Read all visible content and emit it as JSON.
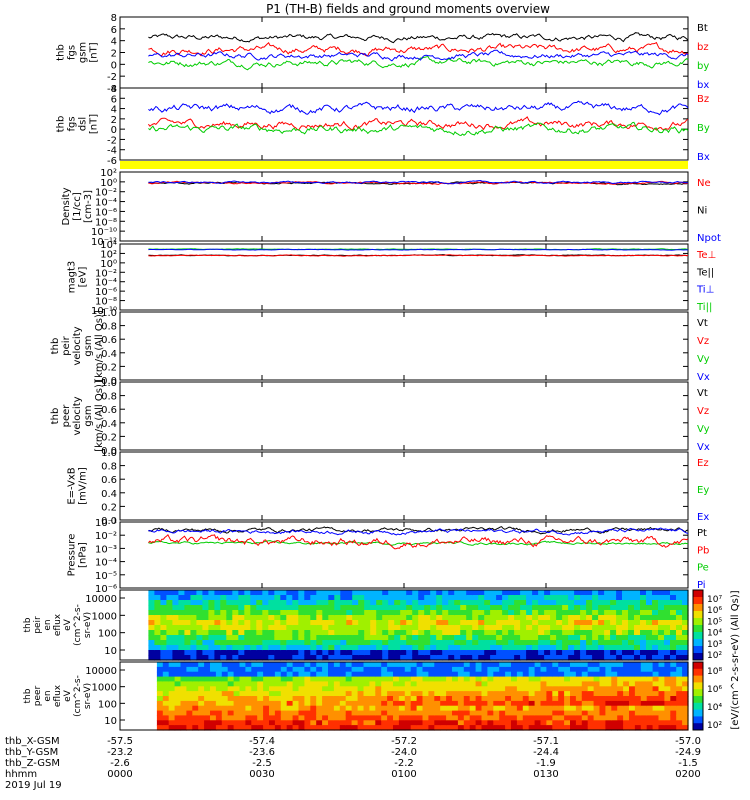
{
  "title": "P1 (TH-B) fields and ground moments overview",
  "colors": {
    "black": "#000000",
    "red": "#ff0000",
    "green": "#00cc00",
    "blue": "#0000ff",
    "yellow": "#ffff00"
  },
  "chart_data": {
    "type": "line",
    "x_range": [
      "00:00",
      "02:00"
    ],
    "date": "2019 Jul 19",
    "time_ticks": [
      "0000",
      "0030",
      "0100",
      "0130",
      "0200"
    ],
    "panels": [
      {
        "id": "fgs_gsm",
        "ylabel": [
          "thb",
          "fgs",
          "gsm",
          "[nT]"
        ],
        "ylim": [
          -4,
          8
        ],
        "yticks": [
          "-4",
          "-2",
          "0",
          "2",
          "4",
          "6",
          "8"
        ],
        "legend": [
          {
            "name": "Bt",
            "color": "#000000"
          },
          {
            "name": "bz",
            "color": "#ff0000"
          },
          {
            "name": "by",
            "color": "#00cc00"
          },
          {
            "name": "bx",
            "color": "#0000ff"
          }
        ],
        "series": [
          {
            "name": "Bt",
            "mean": 4.5,
            "amp": 0.8
          },
          {
            "name": "bz",
            "mean": 2.5,
            "amp": 1.0
          },
          {
            "name": "by",
            "mean": 0.3,
            "amp": 0.9
          },
          {
            "name": "bx",
            "mean": 1.5,
            "amp": 0.8
          }
        ]
      },
      {
        "id": "fgs_dsl",
        "ylabel": [
          "thb",
          "fgs",
          "dsl",
          "[nT]"
        ],
        "ylim": [
          -6,
          8
        ],
        "yticks": [
          "-6",
          "-4",
          "-2",
          "0",
          "2",
          "4",
          "6",
          "8"
        ],
        "legend": [
          {
            "name": "Bz",
            "color": "#ff0000"
          },
          {
            "name": "By",
            "color": "#00cc00"
          },
          {
            "name": "Bx",
            "color": "#0000ff"
          }
        ],
        "series": [
          {
            "name": "Bz",
            "mean": 1.0,
            "amp": 1.2
          },
          {
            "name": "By",
            "mean": 0.0,
            "amp": 1.2
          },
          {
            "name": "Bx",
            "mean": 4.0,
            "amp": 1.2
          }
        ]
      },
      {
        "id": "density",
        "ylabel": [
          "Density",
          "[1/cc]",
          "[cm-3]"
        ],
        "log": true,
        "ylim": [
          -12,
          2
        ],
        "yticks": [
          "10²",
          "10⁰",
          "10⁻²",
          "10⁻⁴",
          "10⁻⁶",
          "10⁻⁸",
          "10⁻¹⁰",
          "10⁻¹²"
        ],
        "legend": [
          {
            "name": "Ne",
            "color": "#ff0000"
          },
          {
            "name": "Ni",
            "color": "#000000"
          },
          {
            "name": "Npot",
            "color": "#0000ff"
          }
        ],
        "series": [
          {
            "name": "Ni",
            "mean": -0.3,
            "amp": 0.3
          },
          {
            "name": "Ne",
            "mean": -0.2,
            "amp": 0.3
          },
          {
            "name": "Npot",
            "mean": -0.1,
            "amp": 0.3
          }
        ]
      },
      {
        "id": "temperature",
        "ylabel": [
          "magt3",
          "[eV]"
        ],
        "log": true,
        "ylim": [
          -10,
          4
        ],
        "yticks": [
          "10⁴",
          "10²",
          "10⁰",
          "10⁻²",
          "10⁻⁴",
          "10⁻⁶",
          "10⁻⁸",
          "10⁻¹⁰"
        ],
        "legend": [
          {
            "name": "Te⊥",
            "color": "#ff0000"
          },
          {
            "name": "Te||",
            "color": "#000000"
          },
          {
            "name": "Ti⊥",
            "color": "#0000ff"
          },
          {
            "name": "Ti||",
            "color": "#00cc00"
          }
        ],
        "series": [
          {
            "name": "Ti||",
            "mean": 2.9,
            "amp": 0.1
          },
          {
            "name": "Ti⊥",
            "mean": 2.8,
            "amp": 0.1
          },
          {
            "name": "Te||",
            "mean": 1.6,
            "amp": 0.15
          },
          {
            "name": "Te⊥",
            "mean": 1.55,
            "amp": 0.15
          }
        ]
      },
      {
        "id": "peir_velocity",
        "ylabel": [
          "thb",
          "peir",
          "velocity",
          "gsm",
          "[km/s (All Qs)]"
        ],
        "ylim": [
          0,
          1
        ],
        "yticks": [
          "0.0",
          "0.2",
          "0.4",
          "0.6",
          "0.8",
          "1.0"
        ],
        "legend": [
          {
            "name": "Vt",
            "color": "#000000"
          },
          {
            "name": "Vz",
            "color": "#ff0000"
          },
          {
            "name": "Vy",
            "color": "#00cc00"
          },
          {
            "name": "Vx",
            "color": "#0000ff"
          }
        ],
        "series": []
      },
      {
        "id": "peer_velocity",
        "ylabel": [
          "thb",
          "peer",
          "velocity",
          "gsm",
          "[km/s (All Qs)]"
        ],
        "ylim": [
          0,
          1
        ],
        "yticks": [
          "0.0",
          "0.2",
          "0.4",
          "0.6",
          "0.8",
          "1.0"
        ],
        "legend": [
          {
            "name": "Vt",
            "color": "#000000"
          },
          {
            "name": "Vz",
            "color": "#ff0000"
          },
          {
            "name": "Vy",
            "color": "#00cc00"
          },
          {
            "name": "Vx",
            "color": "#0000ff"
          }
        ],
        "series": []
      },
      {
        "id": "efield",
        "ylabel": [
          "E=-VxB",
          "[mV/m]"
        ],
        "ylim": [
          0,
          1
        ],
        "yticks": [
          "0.0",
          "0.2",
          "0.4",
          "0.6",
          "0.8",
          "1.0"
        ],
        "legend": [
          {
            "name": "Ez",
            "color": "#ff0000"
          },
          {
            "name": "Ey",
            "color": "#00cc00"
          },
          {
            "name": "Ex",
            "color": "#0000ff"
          }
        ],
        "series": []
      },
      {
        "id": "pressure",
        "ylabel": [
          "Pressure",
          "[nPa]"
        ],
        "log": true,
        "ylim": [
          -6,
          -1
        ],
        "yticks": [
          "10⁻¹",
          "10⁻²",
          "10⁻³",
          "10⁻⁴",
          "10⁻⁵",
          "10⁻⁶"
        ],
        "legend": [
          {
            "name": "Pt",
            "color": "#000000"
          },
          {
            "name": "Pb",
            "color": "#ff0000"
          },
          {
            "name": "Pe",
            "color": "#00cc00"
          },
          {
            "name": "Pi",
            "color": "#0000ff"
          }
        ],
        "series": [
          {
            "name": "Pt",
            "mean": -1.6,
            "amp": 0.25
          },
          {
            "name": "Pi",
            "mean": -1.7,
            "amp": 0.25
          },
          {
            "name": "Pe",
            "mean": -2.6,
            "amp": 0.15
          },
          {
            "name": "Pb",
            "mean": -2.5,
            "amp": 0.5
          }
        ]
      }
    ],
    "spectrograms": [
      {
        "id": "peir_en_eflux",
        "ylabel": [
          "thb",
          "peir",
          "en",
          "eflux",
          "eV",
          "(cm^2-s-",
          "sr-eV)"
        ],
        "yticks": [
          "10000",
          "1000",
          "100",
          "10"
        ],
        "colorbar_label": "[eV/(cm^2-s-sr-eV) (All Qs)]",
        "colorbar_ticks": [
          "10⁷",
          "10⁶",
          "10⁵",
          "10⁴",
          "10³",
          "10²"
        ]
      },
      {
        "id": "peer_en_eflux",
        "ylabel": [
          "thb",
          "peer",
          "en",
          "eflux",
          "eV",
          "(cm^2-s-",
          "sr-eV)"
        ],
        "yticks": [
          "10000",
          "1000",
          "100",
          "10"
        ],
        "colorbar_label": "[eV/(cm^2-s-sr-eV) (All Qs)]",
        "colorbar_ticks": [
          "10⁸",
          "10⁶",
          "10⁴",
          "10²"
        ]
      }
    ],
    "bottom_axis": [
      {
        "label": "thb_X-GSM",
        "values": [
          "-57.5",
          "-57.4",
          "-57.2",
          "-57.1",
          "-57.0"
        ]
      },
      {
        "label": "thb_Y-GSM",
        "values": [
          "-23.2",
          "-23.6",
          "-24.0",
          "-24.4",
          "-24.9"
        ]
      },
      {
        "label": "thb_Z-GSM",
        "values": [
          "-2.6",
          "-2.5",
          "-2.2",
          "-1.9",
          "-1.5"
        ]
      },
      {
        "label": "hhmm",
        "values": [
          "0000",
          "0030",
          "0100",
          "0130",
          "0200"
        ]
      }
    ]
  }
}
